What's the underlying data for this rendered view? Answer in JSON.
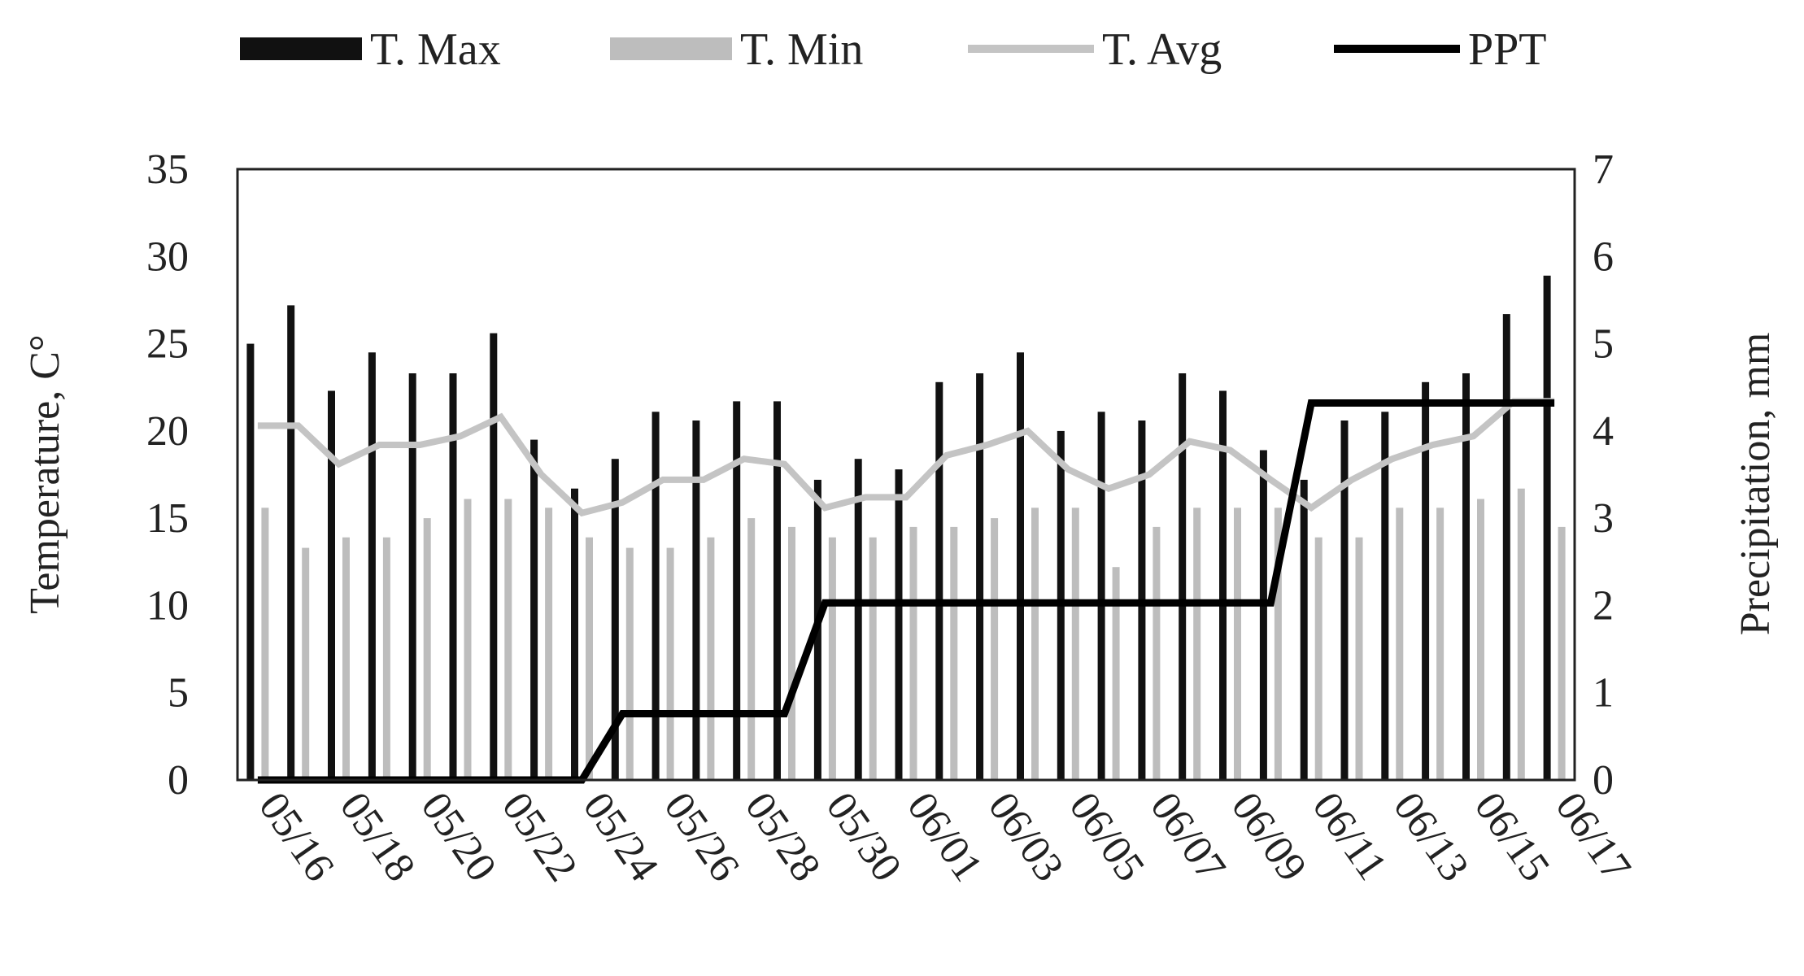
{
  "chart_data": {
    "type": "bar",
    "title": "",
    "xlabel": "",
    "ylabel": "Temperature, C°",
    "y2label": "Precipitation, mm",
    "ylim": [
      0,
      35
    ],
    "y2lim": [
      0,
      7
    ],
    "yticks": [
      "0",
      "5",
      "10",
      "15",
      "20",
      "25",
      "30",
      "35"
    ],
    "y2ticks": [
      "0",
      "1",
      "2",
      "3",
      "4",
      "5",
      "6",
      "7"
    ],
    "grid": false,
    "legend_position": "top",
    "x": [
      "05/16",
      "05/17",
      "05/18",
      "05/19",
      "05/20",
      "05/21",
      "05/22",
      "05/23",
      "05/24",
      "05/25",
      "05/26",
      "05/27",
      "05/28",
      "05/29",
      "05/30",
      "05/31",
      "06/01",
      "06/02",
      "06/03",
      "06/04",
      "06/05",
      "06/06",
      "06/07",
      "06/08",
      "06/09",
      "06/10",
      "06/11",
      "06/12",
      "06/13",
      "06/14",
      "06/15",
      "06/16",
      "06/17"
    ],
    "x_tick_labels": [
      "05/16",
      "05/18",
      "05/20",
      "05/22",
      "05/24",
      "05/26",
      "05/28",
      "05/30",
      "06/01",
      "06/03",
      "06/05",
      "06/07",
      "06/09",
      "06/11",
      "06/13",
      "06/15",
      "06/17"
    ],
    "series": [
      {
        "name": "T. Max",
        "type": "bar",
        "axis": "left",
        "color": "#111111",
        "values": [
          25,
          27.2,
          22.3,
          24.5,
          23.3,
          23.3,
          25.6,
          19.5,
          16.7,
          18.4,
          21.1,
          20.6,
          21.7,
          21.7,
          17.2,
          18.4,
          17.8,
          22.8,
          23.3,
          24.5,
          20,
          21.1,
          20.6,
          23.3,
          22.3,
          18.9,
          17.2,
          20.6,
          21.1,
          22.8,
          23.3,
          26.7,
          28.9
        ]
      },
      {
        "name": "T. Min",
        "type": "bar",
        "axis": "left",
        "color": "#bdbdbd",
        "values": [
          15.6,
          13.3,
          13.9,
          13.9,
          15,
          16.1,
          16.1,
          15.6,
          13.9,
          13.3,
          13.3,
          13.9,
          15,
          14.5,
          13.9,
          13.9,
          14.5,
          14.5,
          15,
          15.6,
          15.6,
          12.2,
          14.5,
          15.6,
          15.6,
          15.6,
          13.9,
          13.9,
          15.6,
          15.6,
          16.1,
          16.7,
          14.5
        ]
      },
      {
        "name": "T. Avg",
        "type": "line",
        "axis": "left",
        "color": "#c4c4c4",
        "values": [
          20.3,
          20.3,
          18.1,
          19.2,
          19.2,
          19.7,
          20.8,
          17.5,
          15.3,
          15.9,
          17.2,
          17.2,
          18.4,
          18.1,
          15.6,
          16.2,
          16.2,
          18.6,
          19.2,
          20,
          17.8,
          16.7,
          17.5,
          19.4,
          18.9,
          17.2,
          15.6,
          17.2,
          18.4,
          19.2,
          19.7,
          21.7,
          21.7
        ]
      },
      {
        "name": "PPT",
        "type": "line",
        "axis": "right",
        "color": "#000000",
        "values": [
          0,
          0,
          0,
          0,
          0,
          0,
          0,
          0,
          0,
          0.76,
          0.76,
          0.76,
          0.76,
          0.76,
          2.03,
          2.03,
          2.03,
          2.03,
          2.03,
          2.03,
          2.03,
          2.03,
          2.03,
          2.03,
          2.03,
          2.03,
          4.32,
          4.32,
          4.32,
          4.32,
          4.32,
          4.32,
          4.32
        ]
      }
    ]
  }
}
